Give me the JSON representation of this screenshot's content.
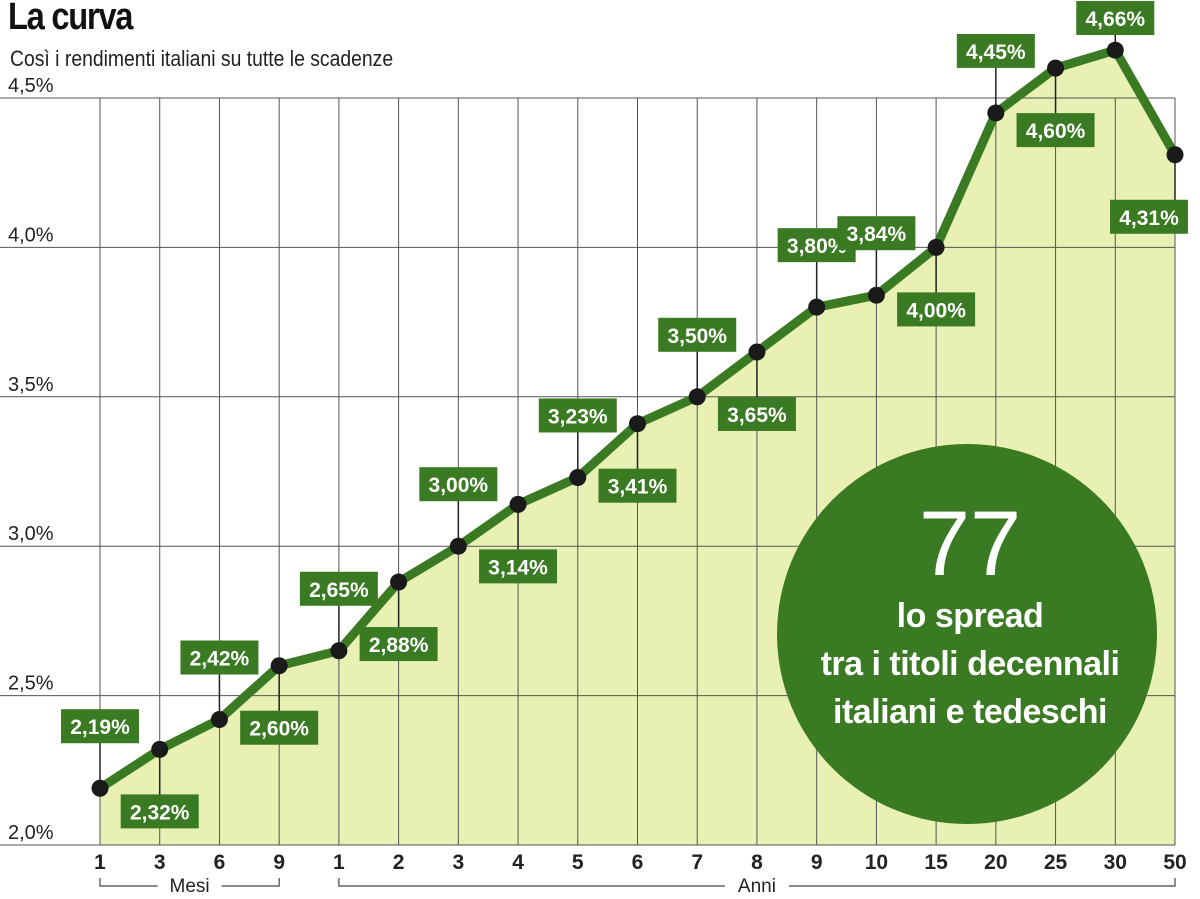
{
  "header": {
    "title": "La curva",
    "subtitle": "Così i rendimenti italiani su tutte le scadenze"
  },
  "colors": {
    "fill": "#e8f0b3",
    "line": "#3a7a22",
    "label_bg": "#3a7a22",
    "marker": "#1a1a1a",
    "grid": "#555555"
  },
  "chart_data": {
    "type": "line",
    "title": "La curva",
    "subtitle": "Così i rendimenti italiani su tutte le scadenze",
    "ylim": [
      2.0,
      4.5
    ],
    "yticks": [
      "2,0%",
      "2,5%",
      "3,0%",
      "3,5%",
      "4,0%",
      "4,5%"
    ],
    "grid": true,
    "categories": [
      "1",
      "3",
      "6",
      "9",
      "1",
      "2",
      "3",
      "4",
      "5",
      "6",
      "7",
      "8",
      "9",
      "10",
      "15",
      "20",
      "25",
      "30",
      "50"
    ],
    "groups": [
      {
        "label": "Mesi",
        "from": 0,
        "to": 3
      },
      {
        "label": "Anni",
        "from": 4,
        "to": 18
      }
    ],
    "values": [
      2.19,
      2.32,
      2.42,
      2.6,
      2.65,
      2.88,
      3.0,
      3.14,
      3.23,
      3.41,
      3.5,
      3.65,
      3.8,
      3.84,
      4.0,
      4.45,
      4.6,
      4.66,
      4.31
    ],
    "labels": [
      "2,19%",
      "2,32%",
      "2,42%",
      "2,60%",
      "2,65%",
      "2,88%",
      "3,00%",
      "3,14%",
      "3,23%",
      "3,41%",
      "3,50%",
      "3,65%",
      "3,80%",
      "3,84%",
      "4,00%",
      "4,45%",
      "4,60%",
      "4,66%",
      "4,31%"
    ],
    "label_positions": [
      "above",
      "below",
      "above",
      "below",
      "above",
      "below",
      "above",
      "below",
      "above",
      "below",
      "above",
      "below",
      "above",
      "above",
      "below",
      "above",
      "below",
      "above",
      "below"
    ]
  },
  "callout": {
    "value": "77",
    "lines": [
      "lo spread",
      "tra i titoli decennali",
      "italiani e tedeschi"
    ]
  }
}
